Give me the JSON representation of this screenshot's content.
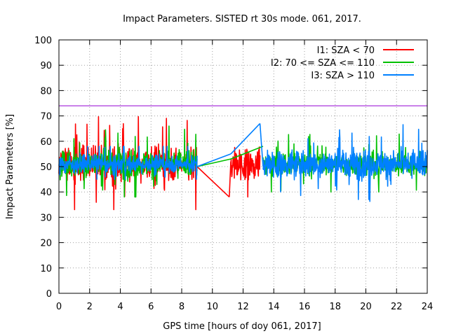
{
  "chart_data": {
    "type": "line",
    "title": "Impact Parameters. SISTED rt 30s mode. 061, 2017.",
    "xlabel": "GPS time [hours of doy 061, 2017]",
    "ylabel": "Impact Parameters [%]",
    "xlim": [
      0,
      24
    ],
    "ylim": [
      0,
      100
    ],
    "xticks": [
      0,
      2,
      4,
      6,
      8,
      10,
      12,
      14,
      16,
      18,
      20,
      22,
      24
    ],
    "yticks": [
      0,
      10,
      20,
      30,
      40,
      50,
      60,
      70,
      80,
      90,
      100
    ],
    "grid": true,
    "legend_position": "top-right",
    "threshold": {
      "value": 74,
      "color": "#9400d3"
    },
    "series": [
      {
        "name": "I1: SZA < 70",
        "color": "#ff0000",
        "mean": 51,
        "segments": [
          {
            "x_start": 0.0,
            "x_end": 9.0,
            "spread": 6,
            "max": 72,
            "min": 33
          },
          {
            "x_start": 11.2,
            "x_end": 13.1,
            "spread": 6,
            "max": 64,
            "min": 38
          }
        ],
        "bridges": [
          {
            "x": [
              9.0,
              11.1
            ],
            "y": [
              50,
              38
            ]
          },
          {
            "x": [
              11.1,
              11.2
            ],
            "y": [
              38,
              52
            ]
          }
        ]
      },
      {
        "name": "I2: 70 <= SZA <= 110",
        "color": "#00c000",
        "mean": 51,
        "segments": [
          {
            "x_start": 0.0,
            "x_end": 9.0,
            "spread": 5,
            "max": 66,
            "min": 38
          },
          {
            "x_start": 13.3,
            "x_end": 24.0,
            "spread": 4,
            "max": 68,
            "min": 40
          }
        ],
        "bridges": [
          {
            "x": [
              9.0,
              11.2
            ],
            "y": [
              50,
              53
            ]
          },
          {
            "x": [
              11.2,
              13.3
            ],
            "y": [
              53,
              58
            ]
          }
        ]
      },
      {
        "name": "I3: SZA > 110",
        "color": "#0080ff",
        "mean": 51,
        "segments": [
          {
            "x_start": 0.0,
            "x_end": 9.0,
            "spread": 3,
            "max": 58,
            "min": 45
          },
          {
            "x_start": 13.3,
            "x_end": 24.0,
            "spread": 5,
            "max": 72,
            "min": 35
          }
        ],
        "bridges": [
          {
            "x": [
              9.0,
              11.2
            ],
            "y": [
              50,
              55
            ]
          },
          {
            "x": [
              11.2,
              13.1
            ],
            "y": [
              55,
              67
            ]
          },
          {
            "x": [
              13.1,
              13.3
            ],
            "y": [
              67,
              50
            ]
          }
        ]
      }
    ]
  }
}
